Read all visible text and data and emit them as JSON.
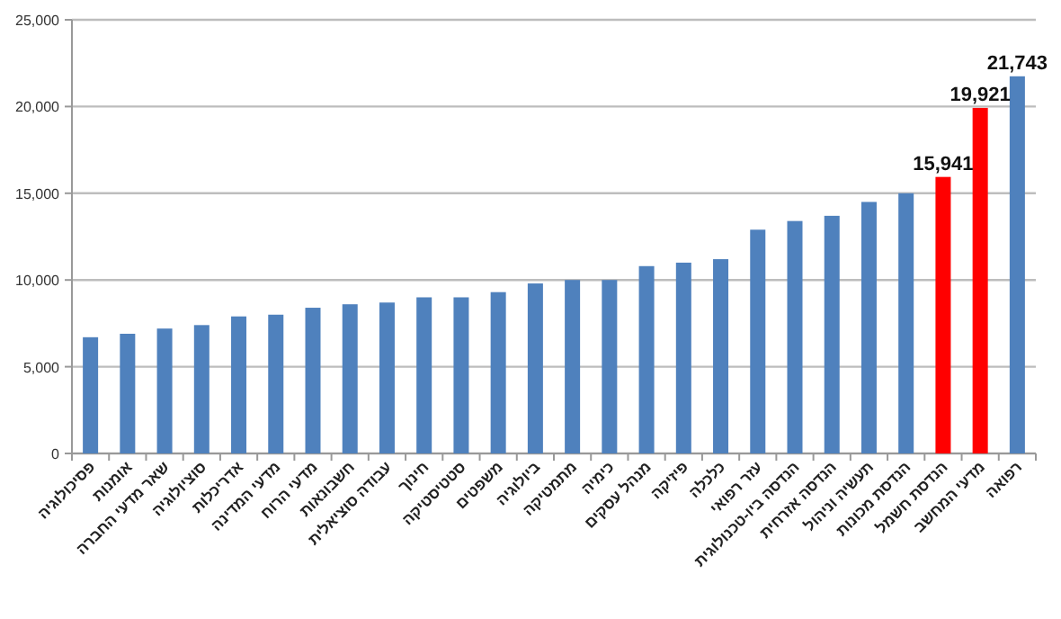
{
  "chart_data": {
    "type": "bar",
    "categories": [
      "פסיכולוגיה",
      "אומנות",
      "שאר מדעי החברה",
      "סוציולוגיה",
      "אדריכלות",
      "מדעי המדינה",
      "מדעי הרוח",
      "חשבונאות",
      "עבודה סוציאלית",
      "חינוך",
      "סטטיסטיקה",
      "משפטים",
      "ביולוגיה",
      "מתמטיקה",
      "כימיה",
      "מנהל עסקים",
      "פיזיקה",
      "כלכלה",
      "עזר רפואי",
      "הנדסה ביו-טכנולוגית",
      "הנדסה אזרחית",
      "תעשיה וניהול",
      "הנדסת מכונות",
      "הנדסת חשמל",
      "מדעי המחשב",
      "רפואה"
    ],
    "values": [
      6700,
      6900,
      7200,
      7400,
      7900,
      8000,
      8400,
      8600,
      8700,
      9000,
      9000,
      9300,
      9800,
      10000,
      10000,
      10800,
      11000,
      11200,
      12900,
      13400,
      13700,
      14500,
      15000,
      15941,
      19921,
      21743
    ],
    "colors": [
      "#4f81bd",
      "#4f81bd",
      "#4f81bd",
      "#4f81bd",
      "#4f81bd",
      "#4f81bd",
      "#4f81bd",
      "#4f81bd",
      "#4f81bd",
      "#4f81bd",
      "#4f81bd",
      "#4f81bd",
      "#4f81bd",
      "#4f81bd",
      "#4f81bd",
      "#4f81bd",
      "#4f81bd",
      "#4f81bd",
      "#4f81bd",
      "#4f81bd",
      "#4f81bd",
      "#4f81bd",
      "#4f81bd",
      "#ff0000",
      "#ff0000",
      "#4f81bd"
    ],
    "value_labels": [
      null,
      null,
      null,
      null,
      null,
      null,
      null,
      null,
      null,
      null,
      null,
      null,
      null,
      null,
      null,
      null,
      null,
      null,
      null,
      null,
      null,
      null,
      null,
      "15,941",
      "19,921",
      "21,743"
    ],
    "ylim": [
      0,
      25000
    ],
    "yticks": [
      {
        "value": 0,
        "label": "0"
      },
      {
        "value": 5000,
        "label": "5,000"
      },
      {
        "value": 10000,
        "label": "10,000"
      },
      {
        "value": 15000,
        "label": "15,000"
      },
      {
        "value": 20000,
        "label": "20,000"
      },
      {
        "value": 25000,
        "label": "25,000"
      }
    ],
    "grid": "y"
  }
}
